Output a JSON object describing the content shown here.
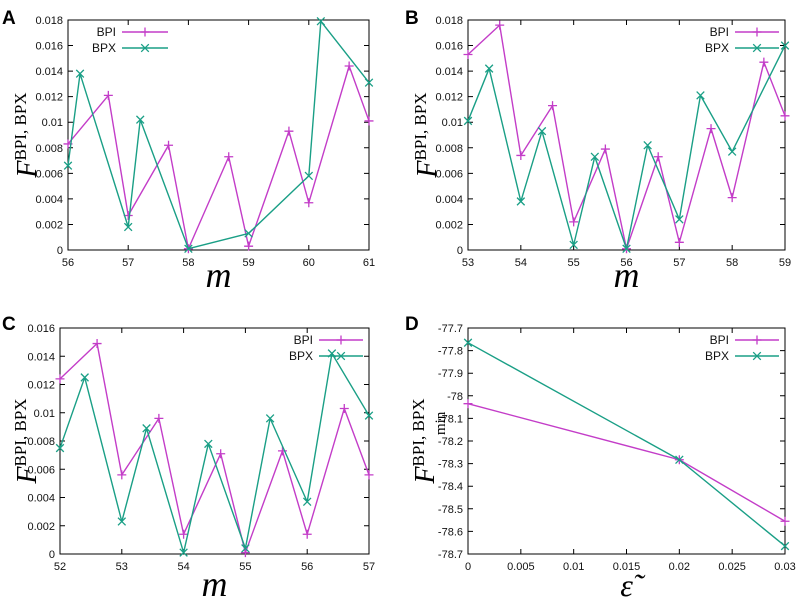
{
  "colors": {
    "bpi": "#c33dc8",
    "bpx": "#1a9f86",
    "axis": "#000000"
  },
  "chart_data": [
    {
      "type": "line",
      "panel": "A",
      "xlabel": "m",
      "ylabel_main": "F",
      "ylabel_sup": "BPI, BPX",
      "xlim": [
        56,
        61
      ],
      "ylim": [
        0,
        0.018
      ],
      "xticks": [
        "56",
        "57",
        "58",
        "59",
        "60",
        "61"
      ],
      "yticks": [
        "0",
        "0.002",
        "0.004",
        "0.006",
        "0.008",
        "0.01",
        "0.012",
        "0.014",
        "0.016",
        "0.018"
      ],
      "legend": [
        "BPI",
        "BPX"
      ],
      "legend_position": "top-left",
      "series": [
        {
          "name": "BPI",
          "x": [
            56,
            56.67,
            57,
            57.67,
            58,
            58.67,
            59,
            59.67,
            60,
            60.67,
            61
          ],
          "y": [
            0.0083,
            0.0121,
            0.0027,
            0.0082,
            0.0001,
            0.0073,
            0.0003,
            0.0093,
            0.0037,
            0.0144,
            0.0101
          ]
        },
        {
          "name": "BPX",
          "x": [
            56,
            56.2,
            57,
            57.2,
            58,
            59,
            60,
            60.2,
            61
          ],
          "y": [
            0.0066,
            0.0138,
            0.0018,
            0.0102,
            0.0001,
            0.0013,
            0.0058,
            0.0179,
            0.0131
          ]
        }
      ]
    },
    {
      "type": "line",
      "panel": "B",
      "xlabel": "m",
      "ylabel_main": "F",
      "ylabel_sup": "BPI, BPX",
      "xlim": [
        53,
        59
      ],
      "ylim": [
        0,
        0.018
      ],
      "xticks": [
        "53",
        "54",
        "55",
        "56",
        "57",
        "58",
        "59"
      ],
      "yticks": [
        "0",
        "0.002",
        "0.004",
        "0.006",
        "0.008",
        "0.01",
        "0.012",
        "0.014",
        "0.016",
        "0.018"
      ],
      "legend": [
        "BPI",
        "BPX"
      ],
      "legend_position": "top-right",
      "series": [
        {
          "name": "BPI",
          "x": [
            53,
            53.6,
            54,
            54.6,
            55,
            55.6,
            56,
            56.6,
            57,
            57.6,
            58,
            58.6,
            59
          ],
          "y": [
            0.0153,
            0.0176,
            0.0074,
            0.0113,
            0.0022,
            0.0079,
            0.0001,
            0.0073,
            0.0006,
            0.0095,
            0.0041,
            0.0147,
            0.0105
          ]
        },
        {
          "name": "BPX",
          "x": [
            53,
            53.4,
            54,
            54.4,
            55,
            55.4,
            56,
            56.4,
            57,
            57.4,
            58,
            59
          ],
          "y": [
            0.0101,
            0.0142,
            0.0038,
            0.0093,
            0.0004,
            0.0073,
            0.0001,
            0.0082,
            0.0024,
            0.0121,
            0.0077,
            0.016
          ]
        }
      ]
    },
    {
      "type": "line",
      "panel": "C",
      "xlabel": "m",
      "ylabel_main": "F",
      "ylabel_sup": "BPI, BPX",
      "xlim": [
        52,
        57
      ],
      "ylim": [
        0,
        0.016
      ],
      "xticks": [
        "52",
        "53",
        "54",
        "55",
        "56",
        "57"
      ],
      "yticks": [
        "0",
        "0.002",
        "0.004",
        "0.006",
        "0.008",
        "0.01",
        "0.012",
        "0.014",
        "0.016"
      ],
      "legend": [
        "BPI",
        "BPX"
      ],
      "legend_position": "top-right",
      "series": [
        {
          "name": "BPI",
          "x": [
            52,
            52.6,
            53,
            53.6,
            54,
            54.6,
            55,
            55.6,
            56,
            56.6,
            57
          ],
          "y": [
            0.0124,
            0.0149,
            0.0056,
            0.0096,
            0.0014,
            0.0071,
            0.0001,
            0.0073,
            0.0014,
            0.0103,
            0.0056
          ]
        },
        {
          "name": "BPX",
          "x": [
            52,
            52.4,
            53,
            53.4,
            54,
            54.4,
            55,
            55.4,
            56,
            56.4,
            57
          ],
          "y": [
            0.0075,
            0.0125,
            0.0023,
            0.0089,
            0.0001,
            0.0078,
            0.0004,
            0.0096,
            0.0037,
            0.0142,
            0.0098
          ]
        }
      ]
    },
    {
      "type": "line",
      "panel": "D",
      "xlabel": "ε̃",
      "ylabel_main": "F",
      "ylabel_sup": "BPI, BPX",
      "ylabel_sub": "min",
      "xlim": [
        0,
        0.03
      ],
      "ylim": [
        -78.7,
        -77.7
      ],
      "xticks": [
        "0",
        "0.005",
        "0.01",
        "0.015",
        "0.02",
        "0.025",
        "0.03"
      ],
      "yticks": [
        "-78.7",
        "-78.6",
        "-78.5",
        "-78.4",
        "-78.3",
        "-78.2",
        "-78.1",
        "-78",
        "-77.9",
        "-77.8",
        "-77.7"
      ],
      "legend": [
        "BPI",
        "BPX"
      ],
      "legend_position": "top-right",
      "series": [
        {
          "name": "BPI",
          "x": [
            0,
            0.02,
            0.03
          ],
          "y": [
            -78.035,
            -78.283,
            -78.555
          ]
        },
        {
          "name": "BPX",
          "x": [
            0,
            0.02,
            0.03
          ],
          "y": [
            -77.765,
            -78.283,
            -78.665
          ]
        }
      ]
    }
  ]
}
